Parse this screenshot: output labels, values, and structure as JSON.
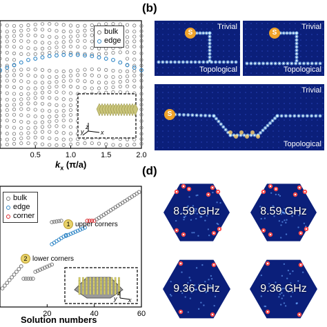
{
  "panel_b": {
    "label": "(b)"
  },
  "panel_d": {
    "label": "(d)"
  },
  "panel_a": {
    "legend": [
      {
        "name": "bulk",
        "color": "#777777"
      },
      {
        "name": "edge",
        "color": "#2f86c6"
      }
    ],
    "xlabel": "k_x (π/a)",
    "xlabel_k": "k",
    "xlabel_sub": "x",
    "xlabel_rest": "(π/a)",
    "inset_axes": [
      "z",
      "y",
      "x"
    ]
  },
  "panel_c": {
    "legend": [
      {
        "name": "bulk",
        "color": "#777777"
      },
      {
        "name": "edge",
        "color": "#2f86c6"
      },
      {
        "name": "corner",
        "color": "#d9262b"
      }
    ],
    "xlabel": "Solution numbers",
    "annotations": [
      {
        "badge": "1",
        "text": "upper corners"
      },
      {
        "badge": "2",
        "text": "lower corners"
      }
    ],
    "inset_axes": [
      "z",
      "y",
      "x"
    ]
  },
  "fields_b": [
    {
      "top": "Trivial",
      "bottom": "Topological",
      "source": "S"
    },
    {
      "top": "Trivial",
      "bottom": "Topological",
      "source": "S"
    },
    {
      "top": "Trivial",
      "bottom": "Topological",
      "source": "S"
    }
  ],
  "fields_d": [
    {
      "freq": "8.59 GHz"
    },
    {
      "freq": "8.59 GHz"
    },
    {
      "freq": "9.36 GHz"
    },
    {
      "freq": "9.36 GHz"
    }
  ],
  "chart_data": [
    {
      "type": "scatter",
      "xticks": [
        "0.5",
        "1.0",
        "1.5",
        "2.0"
      ],
      "xlim": [
        0,
        2.0
      ],
      "series": [
        {
          "name": "bulk",
          "color": "#777777"
        },
        {
          "name": "edge",
          "color": "#2f86c6",
          "x": [
            0.0,
            0.1,
            0.2,
            0.3,
            0.4,
            0.5,
            0.6,
            0.7,
            0.8,
            0.9,
            1.0,
            1.1,
            1.2,
            1.3,
            1.4,
            1.5,
            1.6,
            1.7,
            1.8,
            1.9,
            2.0
          ],
          "y": [
            0.58,
            0.6,
            0.62,
            0.64,
            0.66,
            0.67,
            0.68,
            0.69,
            0.695,
            0.7,
            0.7,
            0.7,
            0.695,
            0.69,
            0.68,
            0.67,
            0.66,
            0.64,
            0.62,
            0.6,
            0.58
          ]
        }
      ]
    },
    {
      "type": "scatter",
      "xticks": [
        "20",
        "40",
        "60"
      ],
      "xlim": [
        0,
        60
      ],
      "xlabel": "Solution numbers",
      "series": [
        {
          "name": "bulk",
          "color": "#777777"
        },
        {
          "name": "edge",
          "color": "#2f86c6"
        },
        {
          "name": "corner",
          "color": "#d9262b"
        }
      ]
    }
  ]
}
